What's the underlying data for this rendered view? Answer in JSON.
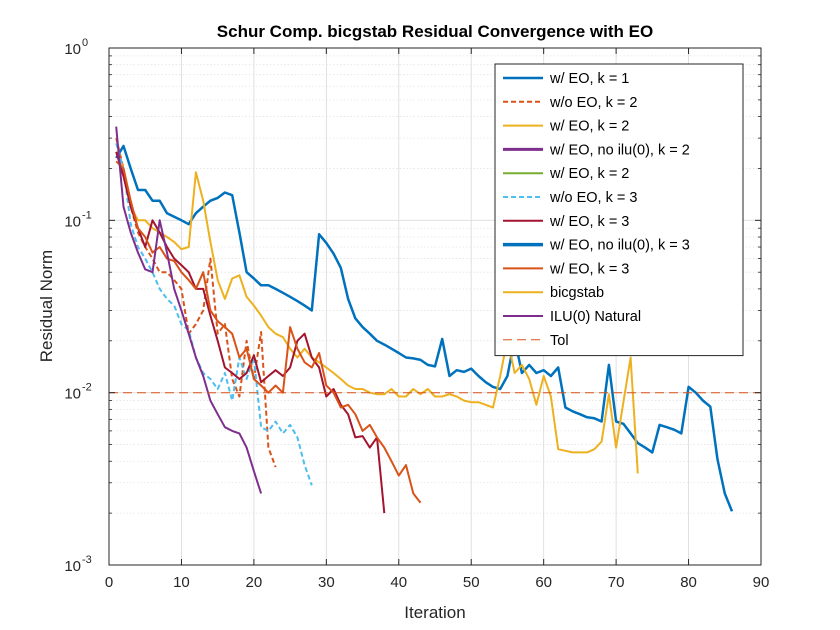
{
  "chart_data": {
    "type": "line",
    "title": "Schur Comp. bicgstab Residual Convergence with EO",
    "xlabel": "Iteration",
    "ylabel": "Residual Norm",
    "xlim": [
      0,
      90
    ],
    "ylim": [
      0.001,
      1
    ],
    "yscale": "log",
    "grid": true,
    "legend_position": "top-right",
    "x_ticks": [
      "0",
      "10",
      "20",
      "30",
      "40",
      "50",
      "60",
      "70",
      "80",
      "90"
    ],
    "y_ticks": [
      {
        "base": "10",
        "exp": "-3",
        "value": 0.001
      },
      {
        "base": "10",
        "exp": "-2",
        "value": 0.01
      },
      {
        "base": "10",
        "exp": "-1",
        "value": 0.1
      },
      {
        "base": "10",
        "exp": "0",
        "value": 1
      }
    ],
    "series": [
      {
        "name": "w/ EO, k = 1",
        "color": "#0072BD",
        "width": 2.5,
        "dash": "solid",
        "x": [
          1,
          2,
          3,
          4,
          5,
          6,
          7,
          8,
          9,
          10,
          11,
          12,
          13,
          14,
          15,
          16,
          17,
          18,
          19,
          20,
          21,
          22,
          23,
          24,
          25,
          26,
          27,
          28,
          29,
          30,
          31,
          32,
          33,
          34,
          35,
          36,
          37,
          38,
          39,
          40,
          41,
          42,
          43,
          44,
          45,
          46,
          47,
          48,
          49,
          50,
          51,
          52,
          53,
          54,
          55,
          56,
          57,
          58,
          59,
          60,
          61,
          62,
          63,
          64,
          65,
          66,
          67,
          68,
          69,
          70,
          71,
          72,
          73,
          74,
          75,
          76,
          77,
          78,
          79,
          80,
          81,
          82,
          83,
          84,
          85,
          86
        ],
        "y": [
          0.23,
          0.27,
          0.2,
          0.15,
          0.15,
          0.13,
          0.13,
          0.11,
          0.105,
          0.1,
          0.095,
          0.11,
          0.12,
          0.13,
          0.135,
          0.145,
          0.14,
          0.085,
          0.05,
          0.046,
          0.042,
          0.042,
          0.04,
          0.038,
          0.036,
          0.034,
          0.032,
          0.03,
          0.083,
          0.074,
          0.064,
          0.053,
          0.035,
          0.027,
          0.024,
          0.022,
          0.02,
          0.019,
          0.018,
          0.017,
          0.016,
          0.0158,
          0.0155,
          0.0145,
          0.0142,
          0.0205,
          0.0125,
          0.0135,
          0.0132,
          0.0138,
          0.0125,
          0.0115,
          0.0108,
          0.0105,
          0.0125,
          0.0205,
          0.013,
          0.0145,
          0.013,
          0.0135,
          0.0125,
          0.014,
          0.0082,
          0.0078,
          0.0075,
          0.0072,
          0.0071,
          0.0068,
          0.0145,
          0.0068,
          0.0066,
          0.0058,
          0.0051,
          0.0048,
          0.0045,
          0.0065,
          0.0063,
          0.0061,
          0.0058,
          0.0108,
          0.01,
          0.009,
          0.0083,
          0.0041,
          0.0026,
          0.00205
        ]
      },
      {
        "name": "w/o EO, k = 2",
        "color": "#D95319",
        "width": 2,
        "dash": "dashed",
        "x": [
          1,
          2,
          3,
          4,
          5,
          6,
          7,
          8,
          9,
          10,
          11,
          12,
          13,
          14,
          15,
          16,
          17,
          18,
          19,
          20,
          21,
          22,
          23
        ],
        "y": [
          0.3,
          0.2,
          0.12,
          0.085,
          0.07,
          0.06,
          0.05,
          0.05,
          0.045,
          0.04,
          0.022,
          0.025,
          0.03,
          0.06,
          0.022,
          0.025,
          0.012,
          0.0095,
          0.02,
          0.012,
          0.0225,
          0.0048,
          0.0037
        ]
      },
      {
        "name": "w/ EO, k = 2",
        "color": "#EDB120",
        "width": 2,
        "dash": "solid",
        "x": [
          1,
          2,
          3,
          4,
          5,
          6,
          7,
          8,
          9,
          10,
          11,
          12,
          13,
          14,
          15,
          16,
          17,
          18,
          19,
          20,
          21,
          22,
          23,
          24,
          25,
          26,
          27,
          28,
          29,
          30,
          31,
          32,
          33,
          34,
          35,
          36,
          37,
          38,
          39,
          40,
          41,
          42,
          43,
          44,
          45,
          46,
          47,
          48,
          49,
          50,
          51,
          52,
          53,
          54,
          55,
          56,
          57,
          58,
          59,
          60,
          61,
          62,
          63,
          64,
          65,
          66,
          67,
          68,
          69,
          70,
          71,
          72,
          73
        ],
        "y": [
          0.25,
          0.2,
          0.12,
          0.1,
          0.1,
          0.09,
          0.085,
          0.08,
          0.075,
          0.068,
          0.07,
          0.19,
          0.13,
          0.075,
          0.045,
          0.035,
          0.046,
          0.048,
          0.036,
          0.032,
          0.028,
          0.024,
          0.022,
          0.021,
          0.018,
          0.016,
          0.018,
          0.016,
          0.015,
          0.014,
          0.013,
          0.012,
          0.011,
          0.0105,
          0.0105,
          0.01,
          0.0098,
          0.0098,
          0.0105,
          0.0095,
          0.0095,
          0.0105,
          0.0098,
          0.0105,
          0.0095,
          0.0095,
          0.0098,
          0.0095,
          0.009,
          0.0088,
          0.0088,
          0.0085,
          0.0082,
          0.0125,
          0.0205,
          0.013,
          0.0145,
          0.012,
          0.0085,
          0.0125,
          0.0095,
          0.0047,
          0.0046,
          0.0045,
          0.0045,
          0.0045,
          0.0047,
          0.0052,
          0.0098,
          0.0048,
          0.0088,
          0.016,
          0.0034
        ]
      },
      {
        "name": "w/ EO, no ilu(0), k = 2",
        "color": "#7E2F8E",
        "width": 3,
        "dash": "solid",
        "x": [],
        "y": []
      },
      {
        "name": "w/ EO, k = 2",
        "color": "#77AC30",
        "width": 2,
        "dash": "solid",
        "x": [],
        "y": []
      },
      {
        "name": "w/o EO, k = 3",
        "color": "#4DBEEE",
        "width": 2,
        "dash": "dashed",
        "x": [
          1,
          2,
          3,
          4,
          5,
          6,
          7,
          8,
          9,
          10,
          11,
          12,
          13,
          14,
          15,
          16,
          17,
          18,
          19,
          20,
          21,
          22,
          23,
          24,
          25,
          26,
          27,
          28
        ],
        "y": [
          0.28,
          0.2,
          0.095,
          0.07,
          0.06,
          0.05,
          0.04,
          0.035,
          0.032,
          0.025,
          0.023,
          0.016,
          0.013,
          0.012,
          0.0105,
          0.013,
          0.009,
          0.016,
          0.012,
          0.016,
          0.0063,
          0.006,
          0.0068,
          0.0058,
          0.0065,
          0.0055,
          0.0038,
          0.0029
        ]
      },
      {
        "name": "w/ EO, k = 3",
        "color": "#A2142F",
        "width": 2,
        "dash": "solid",
        "x": [
          1,
          2,
          3,
          4,
          5,
          6,
          7,
          8,
          9,
          10,
          11,
          12,
          13,
          14,
          15,
          16,
          17,
          18,
          19,
          20,
          21,
          22,
          23,
          24,
          25,
          26,
          27,
          28,
          29,
          30,
          31,
          32,
          33,
          34,
          35,
          36,
          37,
          38
        ],
        "y": [
          0.25,
          0.18,
          0.12,
          0.09,
          0.07,
          0.1,
          0.085,
          0.07,
          0.06,
          0.055,
          0.05,
          0.04,
          0.04,
          0.028,
          0.02,
          0.014,
          0.013,
          0.012,
          0.013,
          0.0165,
          0.0115,
          0.0125,
          0.0135,
          0.0125,
          0.014,
          0.02,
          0.022,
          0.016,
          0.014,
          0.0095,
          0.0105,
          0.0085,
          0.0075,
          0.0055,
          0.0056,
          0.0048,
          0.0055,
          0.002
        ]
      },
      {
        "name": "w/ EO, no ilu(0), k = 3",
        "color": "#0072BD",
        "width": 3.5,
        "dash": "solid",
        "x": [],
        "y": []
      },
      {
        "name": "w/ EO, k = 3",
        "color": "#D95319",
        "width": 2,
        "dash": "solid",
        "x": [
          1,
          2,
          3,
          4,
          5,
          6,
          7,
          8,
          9,
          10,
          11,
          12,
          13,
          14,
          15,
          16,
          17,
          18,
          19,
          20,
          21,
          22,
          23,
          24,
          25,
          26,
          27,
          28,
          29,
          30,
          31,
          32,
          33,
          34,
          35,
          36,
          37,
          38,
          39,
          40,
          41,
          42,
          43
        ],
        "y": [
          0.22,
          0.2,
          0.13,
          0.09,
          0.08,
          0.065,
          0.07,
          0.06,
          0.058,
          0.05,
          0.045,
          0.04,
          0.05,
          0.03,
          0.026,
          0.024,
          0.022,
          0.016,
          0.018,
          0.012,
          0.011,
          0.01,
          0.011,
          0.01,
          0.024,
          0.018,
          0.015,
          0.014,
          0.017,
          0.011,
          0.01,
          0.0082,
          0.0085,
          0.0075,
          0.006,
          0.0065,
          0.0055,
          0.0048,
          0.004,
          0.0033,
          0.0038,
          0.0026,
          0.0023
        ]
      },
      {
        "name": "bicgstab",
        "color": "#EDB120",
        "width": 2,
        "dash": "solid",
        "x": [],
        "y": []
      },
      {
        "name": "ILU(0) Natural",
        "color": "#7E2F8E",
        "width": 2,
        "dash": "solid",
        "x": [
          1,
          2,
          3,
          4,
          5,
          6,
          7,
          8,
          9,
          10,
          11,
          12,
          13,
          14,
          15,
          16,
          17,
          18,
          19,
          20,
          21
        ],
        "y": [
          0.35,
          0.12,
          0.085,
          0.065,
          0.052,
          0.05,
          0.1,
          0.065,
          0.04,
          0.03,
          0.022,
          0.016,
          0.0125,
          0.009,
          0.0075,
          0.0063,
          0.006,
          0.0058,
          0.0048,
          0.0035,
          0.0026
        ]
      },
      {
        "name": "Tol",
        "color": "#D95319",
        "width": 1,
        "dash": "dashed",
        "x": [
          0,
          90
        ],
        "y": [
          0.01,
          0.01
        ]
      }
    ]
  }
}
